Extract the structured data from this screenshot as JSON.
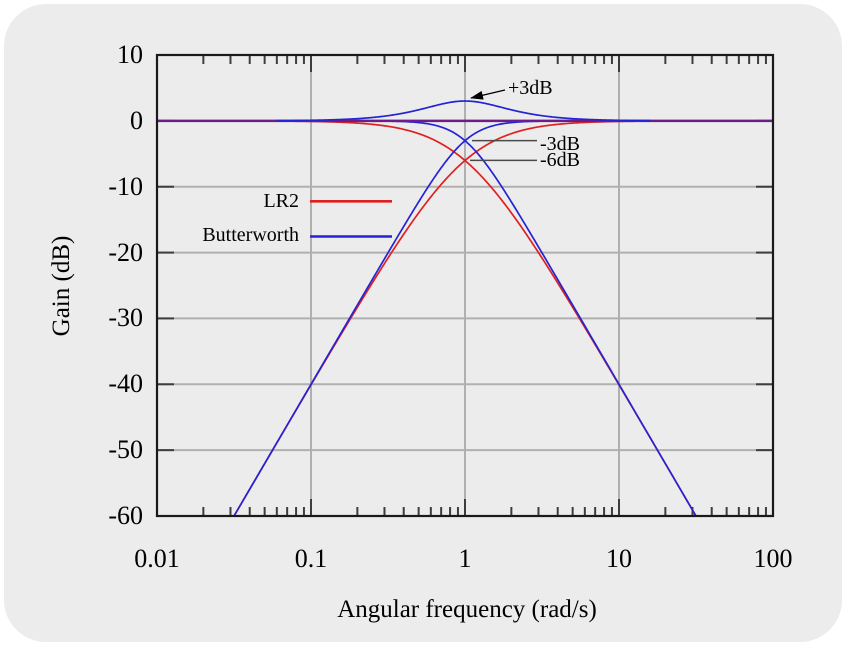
{
  "colors": {
    "background": "#ececec",
    "outer_background": "#ffffff",
    "axis": "#1a1a1a",
    "grid": "#b0b0b0",
    "tick": "#3d3d3d",
    "red": "#e02020",
    "blue": "#2424d6",
    "purple": "#6d1d87",
    "annotation_line": "#4a4a4a",
    "text": "#000000"
  },
  "chart_data": {
    "type": "line",
    "title": "",
    "xlabel": "Angular frequency (rad/s)",
    "ylabel": "Gain (dB)",
    "x_scale": "log",
    "xlim": [
      0.01,
      100
    ],
    "ylim": [
      -60,
      10
    ],
    "grid": true,
    "x_ticks": [
      {
        "value": 0.01,
        "label": "0.01"
      },
      {
        "value": 0.1,
        "label": "0.1"
      },
      {
        "value": 1,
        "label": "1"
      },
      {
        "value": 10,
        "label": "10"
      },
      {
        "value": 100,
        "label": "100"
      }
    ],
    "y_ticks": [
      {
        "value": 10,
        "label": "10"
      },
      {
        "value": 0,
        "label": "0"
      },
      {
        "value": -10,
        "label": "-10"
      },
      {
        "value": -20,
        "label": "-20"
      },
      {
        "value": -30,
        "label": "-30"
      },
      {
        "value": -40,
        "label": "-40"
      },
      {
        "value": -50,
        "label": "-50"
      },
      {
        "value": -60,
        "label": "-60"
      }
    ],
    "x_minor_ticks_per_decade": [
      2,
      3,
      4,
      5,
      6,
      7,
      8,
      9
    ],
    "series": [
      {
        "name": "LR2 lowpass",
        "legend": "LR2",
        "color_key": "red",
        "model": "lr2_lp",
        "equation": "G(dB) = -20*log10(1+w^2)",
        "domain": [
          0.01,
          100
        ],
        "width": 1.7
      },
      {
        "name": "LR2 highpass",
        "legend": "LR2",
        "color_key": "red",
        "model": "lr2_hp",
        "equation": "G(dB) = 20*log10(w^2/(1+w^2))",
        "domain": [
          0.02,
          100
        ],
        "width": 1.7
      },
      {
        "name": "Butterworth lowpass",
        "legend": "Butterworth",
        "color_key": "blue",
        "model": "bw_lp",
        "equation": "G(dB) = -10*log10(1+w^4)",
        "domain": [
          0.01,
          100
        ],
        "width": 1.7
      },
      {
        "name": "Butterworth highpass",
        "legend": "Butterworth",
        "color_key": "blue",
        "model": "bw_hp",
        "equation": "G(dB) = 20*log10(w^2/sqrt(1+w^4))",
        "domain": [
          0.02,
          100
        ],
        "width": 1.7
      },
      {
        "name": "LR2 sum (flat)",
        "legend": "LR2",
        "color_key": "purple",
        "model": "flat",
        "equation": "G(dB) = 0 (flat sum)",
        "domain": [
          0.01,
          100
        ],
        "width": 2.5
      },
      {
        "name": "Butterworth sum",
        "legend": "Butterworth",
        "color_key": "blue",
        "model": "bw_sum",
        "equation": "G(dB) = 20*log10((1+w^2)/sqrt(1+w^4))",
        "domain": [
          0.06,
          16
        ],
        "width": 1.7
      }
    ],
    "key_points": {
      "crossover_frequency_rad_s": 1,
      "butterworth_crossover_gain_db": -3,
      "lr2_crossover_gain_db": -6,
      "butterworth_sum_peak_db": 3,
      "lr2_sum_gain_db": 0,
      "stopband_slope_db_per_decade": 40
    },
    "legend": {
      "position": "upper-left-of-center",
      "items": [
        {
          "label": "LR2",
          "color_key": "red"
        },
        {
          "label": "Butterworth",
          "color_key": "blue"
        }
      ]
    },
    "annotations": [
      {
        "text": "+3dB",
        "type": "arrow",
        "target": {
          "omega": 1,
          "db": 3
        }
      },
      {
        "text": "-3dB",
        "type": "pointer",
        "target": {
          "omega": 1,
          "db": -3
        }
      },
      {
        "text": "-6dB",
        "type": "pointer",
        "target": {
          "omega": 1,
          "db": -6
        }
      }
    ]
  }
}
